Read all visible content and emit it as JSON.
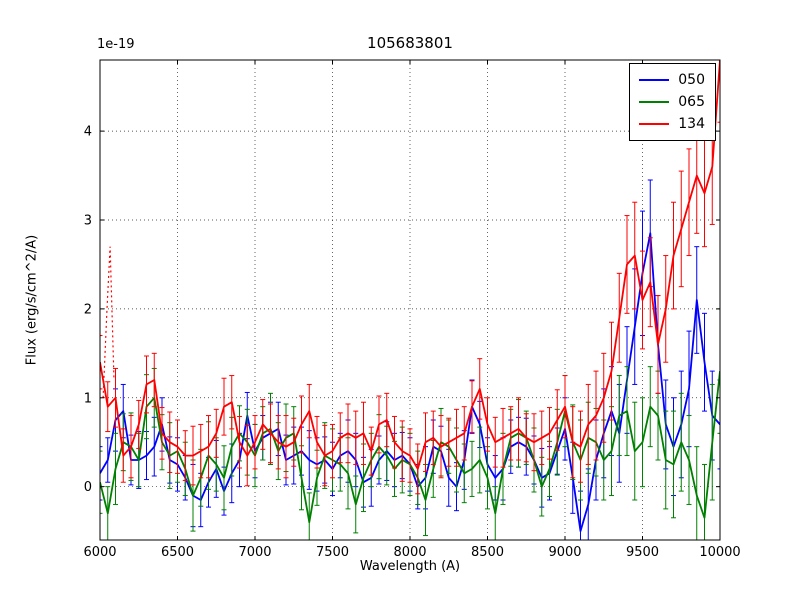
{
  "chart_data": {
    "type": "line",
    "title": "105683801",
    "xlabel": "Wavelength (A)",
    "ylabel": "Flux (erg/s/cm^2/A)",
    "offset_text": "1e-19",
    "xlim": [
      6000,
      10000
    ],
    "ylim": [
      -0.6,
      4.8
    ],
    "xticks": [
      6000,
      6500,
      7000,
      7500,
      8000,
      8500,
      9000,
      9500,
      10000
    ],
    "yticks": [
      0,
      1,
      2,
      3,
      4
    ],
    "grid": true,
    "grid_style": "dotted",
    "legend_position": "upper right",
    "x_start": 6000,
    "x_step": 50,
    "series": [
      {
        "name": "050",
        "color": "#0000ff",
        "values": [
          0.15,
          0.3,
          0.75,
          0.85,
          0.3,
          0.3,
          0.35,
          0.45,
          0.7,
          0.3,
          0.25,
          0.1,
          -0.1,
          -0.15,
          0.05,
          0.2,
          -0.05,
          0.15,
          0.3,
          0.8,
          0.4,
          0.55,
          0.6,
          0.65,
          0.3,
          0.35,
          0.4,
          0.3,
          0.25,
          0.3,
          0.2,
          0.35,
          0.4,
          0.3,
          0.05,
          0.1,
          0.3,
          0.4,
          0.3,
          0.35,
          0.25,
          0.0,
          0.1,
          0.45,
          0.4,
          0.1,
          0.0,
          0.3,
          0.9,
          0.7,
          0.25,
          0.1,
          0.2,
          0.45,
          0.5,
          0.45,
          0.3,
          0.1,
          0.15,
          0.4,
          0.65,
          0.1,
          -0.5,
          -0.2,
          0.3,
          0.6,
          0.85,
          0.6,
          1.2,
          1.8,
          2.4,
          2.85,
          1.6,
          0.7,
          0.45,
          0.7,
          1.1,
          2.1,
          1.4,
          0.8,
          0.7
        ],
        "err": [
          0.3,
          0.25,
          0.35,
          0.3,
          0.28,
          0.32,
          0.27,
          0.33,
          0.3,
          0.26,
          0.3,
          0.25,
          0.35,
          0.3,
          0.28,
          0.32,
          0.27,
          0.33,
          0.3,
          0.26,
          0.3,
          0.25,
          0.35,
          0.3,
          0.28,
          0.32,
          0.27,
          0.33,
          0.3,
          0.26,
          0.3,
          0.25,
          0.35,
          0.3,
          0.28,
          0.32,
          0.27,
          0.33,
          0.3,
          0.26,
          0.3,
          0.25,
          0.35,
          0.3,
          0.28,
          0.32,
          0.27,
          0.33,
          0.3,
          0.26,
          0.3,
          0.25,
          0.35,
          0.3,
          0.28,
          0.32,
          0.27,
          0.33,
          0.3,
          0.26,
          0.35,
          0.4,
          0.45,
          0.4,
          0.45,
          0.5,
          0.5,
          0.55,
          0.6,
          0.65,
          0.7,
          0.6,
          0.55,
          0.5,
          0.55,
          0.6,
          0.65,
          0.6,
          0.55,
          0.5,
          0.5
        ]
      },
      {
        "name": "065",
        "color": "#008000",
        "values": [
          0.05,
          -0.3,
          0.2,
          0.5,
          0.45,
          0.3,
          0.9,
          1.0,
          0.5,
          0.35,
          0.4,
          0.2,
          -0.1,
          0.1,
          0.35,
          0.25,
          0.1,
          0.45,
          0.6,
          0.5,
          0.35,
          0.6,
          0.65,
          0.4,
          0.55,
          0.6,
          0.1,
          -0.4,
          0.1,
          0.35,
          0.3,
          0.25,
          0.15,
          -0.2,
          0.1,
          0.3,
          0.45,
          0.35,
          0.2,
          0.3,
          0.25,
          0.1,
          -0.15,
          0.2,
          0.5,
          0.45,
          0.3,
          0.15,
          0.2,
          0.3,
          0.1,
          -0.3,
          0.2,
          0.55,
          0.6,
          0.55,
          0.3,
          0.0,
          0.2,
          0.5,
          0.85,
          0.5,
          0.3,
          0.55,
          0.5,
          0.3,
          0.4,
          0.8,
          0.85,
          0.4,
          0.5,
          0.9,
          0.8,
          0.3,
          0.25,
          0.5,
          0.3,
          -0.1,
          -0.35,
          0.5,
          1.3
        ],
        "err": [
          0.35,
          0.3,
          0.4,
          0.32,
          0.38,
          0.3,
          0.36,
          0.33,
          0.31,
          0.37,
          0.35,
          0.3,
          0.4,
          0.32,
          0.38,
          0.3,
          0.36,
          0.33,
          0.31,
          0.37,
          0.35,
          0.3,
          0.4,
          0.32,
          0.38,
          0.3,
          0.36,
          0.33,
          0.31,
          0.37,
          0.35,
          0.3,
          0.4,
          0.32,
          0.38,
          0.3,
          0.36,
          0.33,
          0.31,
          0.37,
          0.35,
          0.3,
          0.4,
          0.32,
          0.38,
          0.3,
          0.36,
          0.33,
          0.31,
          0.37,
          0.35,
          0.3,
          0.4,
          0.32,
          0.38,
          0.3,
          0.36,
          0.33,
          0.31,
          0.37,
          0.4,
          0.42,
          0.45,
          0.4,
          0.38,
          0.45,
          0.5,
          0.45,
          0.5,
          0.55,
          0.5,
          0.45,
          0.5,
          0.55,
          0.6,
          0.55,
          0.5,
          0.55,
          0.6,
          0.65,
          0.7
        ]
      },
      {
        "name": "134",
        "color": "#ff0000",
        "values": [
          1.4,
          0.9,
          1.0,
          0.35,
          0.45,
          0.7,
          1.15,
          1.2,
          0.6,
          0.5,
          0.45,
          0.35,
          0.35,
          0.4,
          0.45,
          0.6,
          0.9,
          0.95,
          0.5,
          0.35,
          0.5,
          0.7,
          0.6,
          0.5,
          0.45,
          0.5,
          0.7,
          0.85,
          0.5,
          0.35,
          0.4,
          0.55,
          0.6,
          0.55,
          0.6,
          0.4,
          0.7,
          0.75,
          0.5,
          0.4,
          0.35,
          0.2,
          0.5,
          0.55,
          0.45,
          0.5,
          0.55,
          0.6,
          0.9,
          1.1,
          0.7,
          0.5,
          0.55,
          0.6,
          0.65,
          0.55,
          0.5,
          0.55,
          0.6,
          0.75,
          0.9,
          0.5,
          0.45,
          0.7,
          0.8,
          1.0,
          1.3,
          1.9,
          2.5,
          2.6,
          2.1,
          2.3,
          1.6,
          2.0,
          2.6,
          2.9,
          3.2,
          3.5,
          3.3,
          3.6,
          4.8
        ],
        "err": [
          0.3,
          0.28,
          0.33,
          0.3,
          0.35,
          0.27,
          0.32,
          0.3,
          0.29,
          0.34,
          0.3,
          0.28,
          0.33,
          0.3,
          0.35,
          0.27,
          0.32,
          0.3,
          0.29,
          0.34,
          0.3,
          0.28,
          0.33,
          0.3,
          0.35,
          0.27,
          0.32,
          0.3,
          0.29,
          0.34,
          0.3,
          0.28,
          0.33,
          0.3,
          0.35,
          0.27,
          0.32,
          0.3,
          0.29,
          0.34,
          0.3,
          0.28,
          0.33,
          0.3,
          0.35,
          0.27,
          0.32,
          0.3,
          0.29,
          0.34,
          0.3,
          0.28,
          0.33,
          0.3,
          0.35,
          0.27,
          0.32,
          0.3,
          0.29,
          0.34,
          0.35,
          0.4,
          0.4,
          0.45,
          0.5,
          0.5,
          0.55,
          0.5,
          0.55,
          0.6,
          0.55,
          0.5,
          0.55,
          0.6,
          0.6,
          0.65,
          0.6,
          0.65,
          0.6,
          0.65,
          0.7
        ]
      }
    ],
    "extra_dotted": {
      "name": "134-dotted-spike",
      "color": "#ff0000",
      "style": "dotted",
      "x": [
        6020,
        6045,
        6065,
        6090
      ],
      "values": [
        1.0,
        2.0,
        2.7,
        1.2
      ]
    }
  }
}
